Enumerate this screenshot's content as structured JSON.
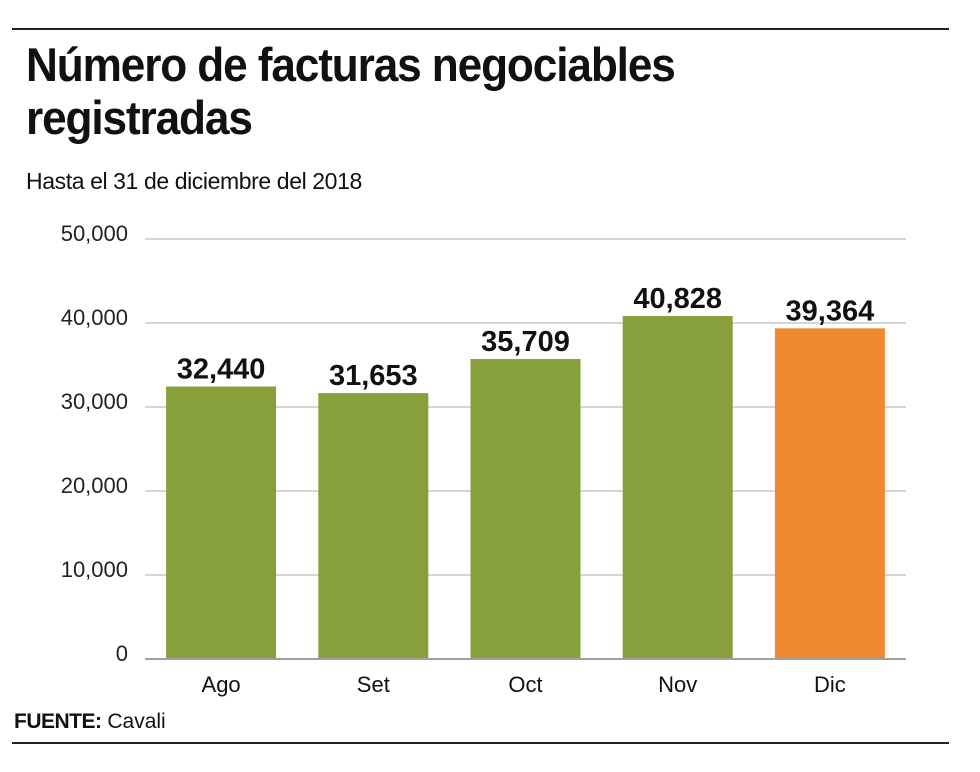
{
  "header": {
    "title": "Número de facturas negociables registradas",
    "subtitle": "Hasta el 31 de diciembre del 2018"
  },
  "footer": {
    "source_label": "FUENTE:",
    "source_value": "Cavali"
  },
  "colors": {
    "default_bar": "#88a03c",
    "highlight_bar": "#f08a32",
    "gridline": "#c8c8c8",
    "baseline": "#a0a0a0"
  },
  "chart_data": {
    "type": "bar",
    "title": "Número de facturas negociables registradas",
    "subtitle": "Hasta el 31 de diciembre del 2018",
    "xlabel": "",
    "ylabel": "",
    "categories": [
      "Ago",
      "Set",
      "Oct",
      "Nov",
      "Dic"
    ],
    "values": [
      32440,
      31653,
      35709,
      40828,
      39364
    ],
    "value_labels": [
      "32,440",
      "31,653",
      "35,709",
      "40,828",
      "39,364"
    ],
    "highlighted_category": "Dic",
    "ylim": [
      0,
      50000
    ],
    "yticks": [
      0,
      10000,
      20000,
      30000,
      40000,
      50000
    ],
    "ytick_labels": [
      "0",
      "10,000",
      "20,000",
      "30,000",
      "40,000",
      "50,000"
    ],
    "grid": true,
    "legend": "none",
    "source": "FUENTE: Cavali"
  }
}
